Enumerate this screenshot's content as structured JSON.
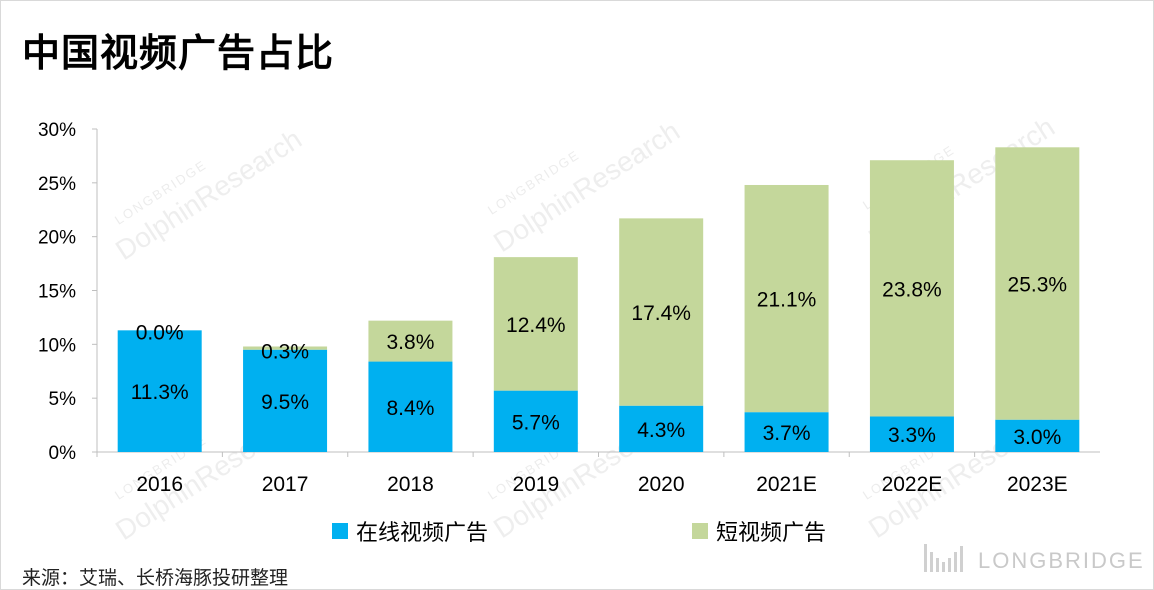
{
  "title": "中国视频广告占比",
  "source": "来源：艾瑞、长桥海豚投研整理",
  "watermark": {
    "brand": "LONGBRIDGE",
    "text": "DolphinResearch"
  },
  "colors": {
    "online": "#00b0f0",
    "short": "#c4d79b",
    "axis": "#bfbfbf"
  },
  "legend": [
    {
      "name": "在线视频广告",
      "color": "#00b0f0"
    },
    {
      "name": "短视频广告",
      "color": "#c4d79b"
    }
  ],
  "chart_data": {
    "type": "bar",
    "stacked": true,
    "categories": [
      "2016",
      "2017",
      "2018",
      "2019",
      "2020",
      "2021E",
      "2022E",
      "2023E"
    ],
    "series": [
      {
        "name": "在线视频广告",
        "values": [
          11.3,
          9.5,
          8.4,
          5.7,
          4.3,
          3.7,
          3.3,
          3.0
        ],
        "labels": [
          "11.3%",
          "9.5%",
          "8.4%",
          "5.7%",
          "4.3%",
          "3.7%",
          "3.3%",
          "3.0%"
        ]
      },
      {
        "name": "短视频广告",
        "values": [
          0.0,
          0.3,
          3.8,
          12.4,
          17.4,
          21.1,
          23.8,
          25.3
        ],
        "labels": [
          "0.0%",
          "0.3%",
          "3.8%",
          "12.4%",
          "17.4%",
          "21.1%",
          "23.8%",
          "25.3%"
        ]
      }
    ],
    "yticks": [
      "0%",
      "5%",
      "10%",
      "15%",
      "20%",
      "25%",
      "30%"
    ],
    "ylim": [
      0,
      30
    ],
    "ystep": 5,
    "legend_position": "bottom"
  }
}
